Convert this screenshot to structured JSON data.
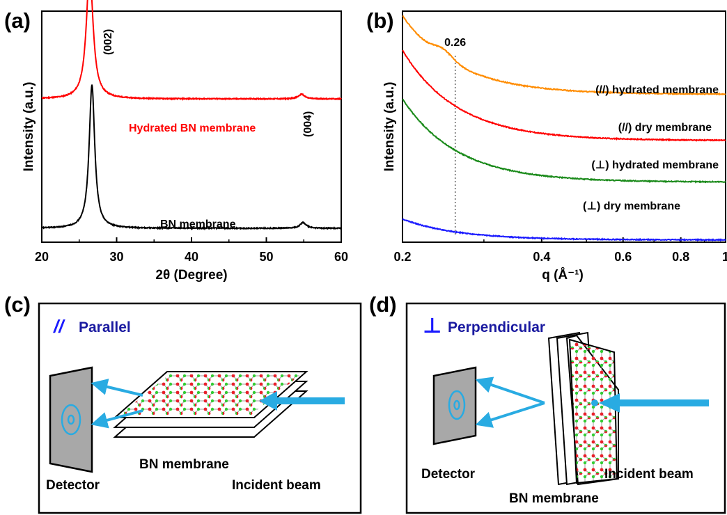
{
  "panels": {
    "a": {
      "label": "(a)"
    },
    "b": {
      "label": "(b)"
    },
    "c": {
      "label": "(c)",
      "mode_symbol": "//",
      "mode_text": "Parallel",
      "membrane_label": "BN membrane",
      "detector_label": "Detector",
      "beam_label": "Incident beam"
    },
    "d": {
      "label": "(d)",
      "mode_symbol": "⊥",
      "mode_text": "Perpendicular",
      "membrane_label": "BN membrane",
      "detector_label": "Detector",
      "beam_label": "Incident beam"
    }
  },
  "colors": {
    "orange": "#ff8c00",
    "red": "#ff0000",
    "green": "#1a8a1a",
    "blue": "#1a1aff",
    "black": "#000000",
    "beam": "#29abe2",
    "mode_text": "#1a1aa0",
    "atom_red": "#e8202a",
    "atom_green": "#33cc33"
  },
  "chart_data": [
    {
      "type": "line",
      "xlabel": "2θ (Degree)",
      "ylabel": "Intensity (a.u.)",
      "xlim": [
        20,
        60
      ],
      "xticks": [
        "20",
        "30",
        "40",
        "50",
        "60"
      ],
      "yticks_shown": false,
      "series": [
        {
          "name": "Hydrated BN membrane",
          "color": "#ff0000",
          "baseline": 0.62,
          "peaks": [
            {
              "x": 26.4,
              "height": 0.55,
              "width": 0.55
            },
            {
              "x": 54.7,
              "height": 0.02,
              "width": 0.5
            }
          ]
        },
        {
          "name": "BN membrane",
          "color": "#000000",
          "baseline": 0.06,
          "peaks": [
            {
              "x": 26.7,
              "height": 0.62,
              "width": 0.45
            },
            {
              "x": 54.9,
              "height": 0.025,
              "width": 0.5
            }
          ]
        }
      ],
      "annotations": [
        {
          "text": "(002)",
          "x": 28.2,
          "y": 1.09
        },
        {
          "text": "(004)",
          "x": 55.9,
          "y": 0.64
        }
      ]
    },
    {
      "type": "line",
      "xlabel": "q (Å⁻¹)",
      "ylabel": "Intensity (a.u.)",
      "xscale": "log",
      "xlim": [
        0.2,
        1
      ],
      "xticks": [
        "0.2",
        "0.4",
        "0.6",
        "0.8",
        "1"
      ],
      "yticks_shown": false,
      "reference_line": {
        "x": 0.26,
        "label": "0.26"
      },
      "series": [
        {
          "name": "(//) hydrated membrane",
          "color": "#ff8c00",
          "start": 0.98,
          "end": 0.64,
          "shoulder": true
        },
        {
          "name": "(//) dry membrane",
          "color": "#ff0000",
          "start": 0.83,
          "end": 0.44,
          "shoulder": false
        },
        {
          "name": "(⊥) hydrated membrane",
          "color": "#1a8a1a",
          "start": 0.62,
          "end": 0.26,
          "shoulder": false
        },
        {
          "name": "(⊥) dry membrane",
          "color": "#1a1aff",
          "start": 0.1,
          "end": 0.01,
          "shoulder": false
        }
      ]
    }
  ]
}
